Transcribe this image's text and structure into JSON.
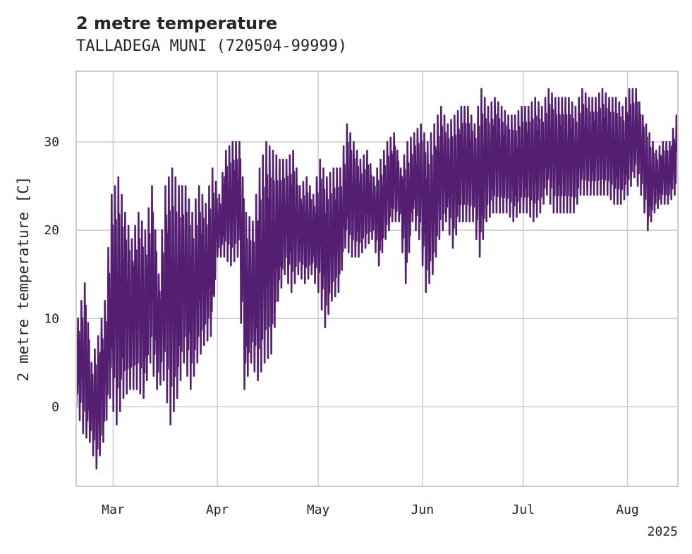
{
  "chart_data": {
    "type": "line",
    "title": "2 metre temperature",
    "subtitle": "TALLADEGA MUNI (720504-99999)",
    "xlabel": "",
    "ylabel": "2 metre temperature [C]",
    "x_tick_labels": [
      "Mar",
      "Apr",
      "May",
      "Jun",
      "Jul",
      "Aug"
    ],
    "x_tick_dates": [
      "2025-03-01",
      "2025-04-01",
      "2025-05-01",
      "2025-06-01",
      "2025-07-01",
      "2025-08-01"
    ],
    "x_year_label": "2025",
    "xlim": [
      "2025-02-18",
      "2025-08-16"
    ],
    "yticks": [
      0,
      10,
      20,
      30
    ],
    "ylim": [
      -9,
      38
    ],
    "grid": true,
    "series": [
      {
        "color": "#541f70",
        "x": [
          "2025-02-18",
          "2025-02-20",
          "2025-02-22",
          "2025-02-24",
          "2025-02-26",
          "2025-02-28",
          "2025-03-02",
          "2025-03-04",
          "2025-03-06",
          "2025-03-08",
          "2025-03-10",
          "2025-03-12",
          "2025-03-14",
          "2025-03-16",
          "2025-03-18",
          "2025-03-20",
          "2025-03-22",
          "2025-03-24",
          "2025-03-26",
          "2025-03-28",
          "2025-03-30",
          "2025-04-01",
          "2025-04-03",
          "2025-04-05",
          "2025-04-07",
          "2025-04-09",
          "2025-04-11",
          "2025-04-13",
          "2025-04-15",
          "2025-04-17",
          "2025-04-19",
          "2025-04-21",
          "2025-04-23",
          "2025-04-25",
          "2025-04-27",
          "2025-04-29",
          "2025-05-01",
          "2025-05-03",
          "2025-05-05",
          "2025-05-07",
          "2025-05-09",
          "2025-05-11",
          "2025-05-13",
          "2025-05-15",
          "2025-05-17",
          "2025-05-19",
          "2025-05-21",
          "2025-05-23",
          "2025-05-25",
          "2025-05-27",
          "2025-05-29",
          "2025-05-31",
          "2025-06-02",
          "2025-06-04",
          "2025-06-06",
          "2025-06-08",
          "2025-06-10",
          "2025-06-12",
          "2025-06-14",
          "2025-06-16",
          "2025-06-18",
          "2025-06-20",
          "2025-06-22",
          "2025-06-24",
          "2025-06-26",
          "2025-06-28",
          "2025-06-30",
          "2025-07-02",
          "2025-07-04",
          "2025-07-06",
          "2025-07-08",
          "2025-07-10",
          "2025-07-12",
          "2025-07-14",
          "2025-07-16",
          "2025-07-18",
          "2025-07-20",
          "2025-07-22",
          "2025-07-24",
          "2025-07-26",
          "2025-07-28",
          "2025-07-30",
          "2025-08-01",
          "2025-08-03",
          "2025-08-05",
          "2025-08-07",
          "2025-08-09",
          "2025-08-11",
          "2025-08-13",
          "2025-08-15"
        ],
        "min": [
          0,
          -3,
          -4,
          -7,
          -4,
          1,
          -2,
          1,
          2,
          2,
          1,
          5,
          2,
          3,
          -2,
          1,
          5,
          2,
          5,
          7,
          8,
          17,
          17,
          16,
          17,
          2,
          5,
          3,
          5,
          6,
          12,
          15,
          13,
          15,
          14,
          15,
          13,
          9,
          12,
          13,
          18,
          17,
          17,
          18,
          19,
          16,
          19,
          21,
          21,
          14,
          21,
          19,
          13,
          15,
          19,
          21,
          18,
          21,
          21,
          21,
          17,
          21,
          22,
          22,
          22,
          21,
          22,
          22,
          21,
          22,
          24,
          22,
          22,
          22,
          22,
          24,
          24,
          24,
          24,
          24,
          23,
          23,
          24,
          26,
          24,
          20,
          22,
          23,
          23,
          24
        ],
        "max": [
          10,
          14,
          5,
          8,
          12,
          24,
          26,
          22,
          19,
          22,
          20,
          25,
          15,
          25,
          27,
          25,
          25,
          22,
          25,
          23,
          27,
          24,
          29,
          30,
          30,
          22,
          21,
          27,
          30,
          29,
          28,
          28,
          29,
          25,
          26,
          24,
          28,
          26,
          27,
          27,
          32,
          30,
          28,
          29,
          26,
          28,
          30,
          31,
          27,
          30,
          31,
          32,
          30,
          32,
          34,
          32,
          33,
          34,
          34,
          32,
          36,
          34,
          35,
          34,
          33,
          33,
          34,
          34,
          35,
          34,
          36,
          35,
          35,
          35,
          34,
          36,
          35,
          35,
          36,
          35,
          35,
          34,
          36,
          36,
          33,
          31,
          29,
          30,
          30,
          33
        ]
      }
    ]
  }
}
